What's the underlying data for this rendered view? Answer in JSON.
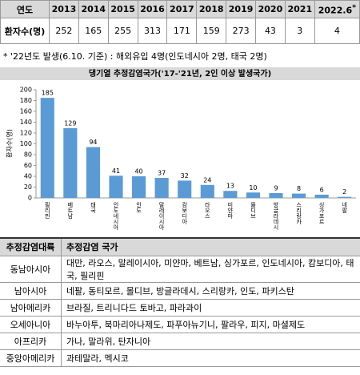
{
  "summary_table": {
    "row_header": "연도",
    "years": [
      "2013",
      "2014",
      "2015",
      "2016",
      "2017",
      "2018",
      "2019",
      "2020",
      "2021",
      "2022.6"
    ],
    "year_mark": "*",
    "value_header": "환자수(명)",
    "values": [
      252,
      165,
      255,
      313,
      171,
      159,
      273,
      43,
      3,
      4
    ]
  },
  "note": "* '22년도 발생(6.10. 기준) : 해외유입 4명(인도네시아 2명, 태국 2명)",
  "chart_data": {
    "type": "bar",
    "title": "댕기열 추정감염국가('17-'21년, 2인 이상 발생국가)",
    "y_label": "환자수(명)",
    "categories": [
      "필리핀",
      "베트남",
      "태국",
      "인도네시아",
      "인도",
      "말레이시아",
      "캄보디아",
      "라오스",
      "미얀마",
      "몰디브",
      "방글라데시",
      "스리랑카",
      "싱가포르",
      "네팔"
    ],
    "values": [
      185,
      129,
      94,
      41,
      40,
      37,
      32,
      24,
      13,
      10,
      9,
      8,
      6,
      2
    ],
    "color": "#5b9bd5",
    "ylim": [
      0,
      200
    ],
    "yticks": [
      0,
      20,
      40,
      60,
      80,
      100,
      120,
      140,
      160,
      180,
      200
    ],
    "grid": false
  },
  "region_table": {
    "headers": [
      "추정감염대륙",
      "추정감염 국가"
    ],
    "rows": [
      [
        "동남아시아",
        "대만, 라오스, 말레이시아, 미얀마, 베트남, 싱가포르, 인도네시아, 캄보디아, 태국, 필리핀"
      ],
      [
        "남아시아",
        "네팔, 동티모르, 몰디브, 방글라데시, 스리랑카, 인도, 파키스탄"
      ],
      [
        "남아메리카",
        "브라질, 트리니다드 토바고, 파라과이"
      ],
      [
        "오세아니아",
        "바누아투, 북마리아나제도, 파푸아뉴기니, 팔라우, 피지, 마셜제도"
      ],
      [
        "아프리카",
        "가나, 말라위, 탄자니아"
      ],
      [
        "중앙아메리카",
        "과테말라, 멕시코"
      ]
    ]
  }
}
